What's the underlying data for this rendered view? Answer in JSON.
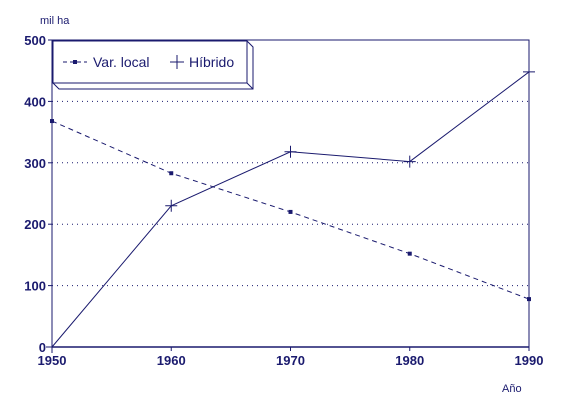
{
  "chart_data": {
    "type": "line",
    "ylabel": "mil ha",
    "xlabel": "Año",
    "x": [
      1950,
      1960,
      1970,
      1980,
      1990
    ],
    "xlim": [
      1950,
      1990
    ],
    "ylim": [
      0,
      500
    ],
    "yticks": [
      0,
      100,
      200,
      300,
      400,
      500
    ],
    "xticks": [
      1950,
      1960,
      1970,
      1980,
      1990
    ],
    "grid": "horizontal-dotted",
    "legend_position": "top-left",
    "colors": {
      "axis": "#1a1a6e",
      "line": "#1a1a6e"
    },
    "series": [
      {
        "name": "Var. local",
        "style": "dashed",
        "marker": "square",
        "values": [
          368,
          283,
          220,
          152,
          78
        ]
      },
      {
        "name": "Híbrido",
        "style": "solid",
        "marker": "plus",
        "values": [
          0,
          230,
          318,
          302,
          448
        ]
      }
    ]
  }
}
